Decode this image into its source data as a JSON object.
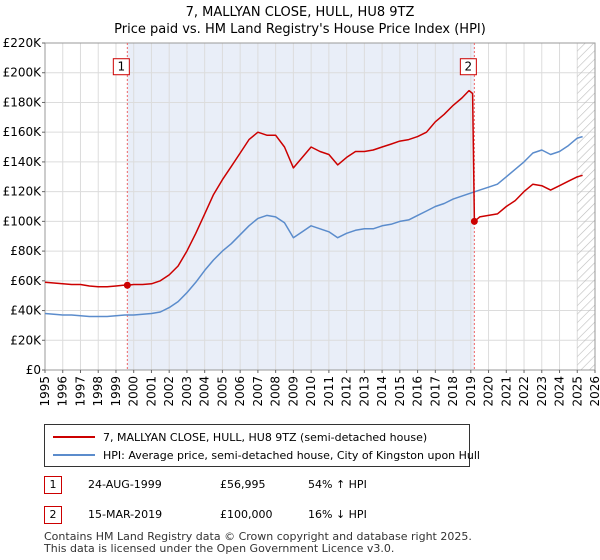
{
  "title_line1": "7, MALLYAN CLOSE, HULL, HU8 9TZ",
  "title_line2": "Price paid vs. HM Land Registry's House Price Index (HPI)",
  "colors": {
    "property": "#cc0000",
    "hpi": "#5b8ccc",
    "marker_line": "#ee6666",
    "hatch": "#bbbbbb",
    "shade": "#e9eef8"
  },
  "chart_data": {
    "type": "line",
    "title": "Price paid vs. HM Land Registry's House Price Index (HPI)",
    "xlabel": "",
    "ylabel": "",
    "xlim": [
      1995,
      2026
    ],
    "ylim": [
      0,
      220000
    ],
    "y_ticks": [
      {
        "value": 0,
        "label": "£0"
      },
      {
        "value": 20000,
        "label": "£20K"
      },
      {
        "value": 40000,
        "label": "£40K"
      },
      {
        "value": 60000,
        "label": "£60K"
      },
      {
        "value": 80000,
        "label": "£80K"
      },
      {
        "value": 100000,
        "label": "£100K"
      },
      {
        "value": 120000,
        "label": "£120K"
      },
      {
        "value": 140000,
        "label": "£140K"
      },
      {
        "value": 160000,
        "label": "£160K"
      },
      {
        "value": 180000,
        "label": "£180K"
      },
      {
        "value": 200000,
        "label": "£200K"
      },
      {
        "value": 220000,
        "label": "£220K"
      }
    ],
    "x_ticks": [
      "1995",
      "1996",
      "1997",
      "1998",
      "1999",
      "2000",
      "2001",
      "2002",
      "2003",
      "2004",
      "2005",
      "2006",
      "2007",
      "2008",
      "2009",
      "2010",
      "2011",
      "2012",
      "2013",
      "2014",
      "2015",
      "2016",
      "2017",
      "2018",
      "2019",
      "2020",
      "2021",
      "2022",
      "2023",
      "2024",
      "2025",
      "2026"
    ],
    "shaded_period": [
      1999.65,
      2019.2
    ],
    "hatched_from": 2025.0,
    "series": [
      {
        "name": "7, MALLYAN CLOSE, HULL, HU8 9TZ (semi-detached house)",
        "points": [
          [
            1995.0,
            59000
          ],
          [
            1995.5,
            58500
          ],
          [
            1996.0,
            58000
          ],
          [
            1996.5,
            57500
          ],
          [
            1997.0,
            57500
          ],
          [
            1997.5,
            56500
          ],
          [
            1998.0,
            56000
          ],
          [
            1998.5,
            56000
          ],
          [
            1999.0,
            56500
          ],
          [
            1999.4,
            57000
          ],
          [
            1999.64,
            56995
          ],
          [
            2000.0,
            57500
          ],
          [
            2000.5,
            57500
          ],
          [
            2001.0,
            58000
          ],
          [
            2001.5,
            60000
          ],
          [
            2002.0,
            64000
          ],
          [
            2002.5,
            70000
          ],
          [
            2003.0,
            80000
          ],
          [
            2003.5,
            92000
          ],
          [
            2004.0,
            105000
          ],
          [
            2004.5,
            118000
          ],
          [
            2005.0,
            128000
          ],
          [
            2005.5,
            137000
          ],
          [
            2006.0,
            146000
          ],
          [
            2006.5,
            155000
          ],
          [
            2007.0,
            160000
          ],
          [
            2007.5,
            158000
          ],
          [
            2008.0,
            158000
          ],
          [
            2008.5,
            150000
          ],
          [
            2009.0,
            136000
          ],
          [
            2009.5,
            143000
          ],
          [
            2010.0,
            150000
          ],
          [
            2010.5,
            147000
          ],
          [
            2011.0,
            145000
          ],
          [
            2011.5,
            138000
          ],
          [
            2012.0,
            143000
          ],
          [
            2012.5,
            147000
          ],
          [
            2013.0,
            147000
          ],
          [
            2013.5,
            148000
          ],
          [
            2014.0,
            150000
          ],
          [
            2014.5,
            152000
          ],
          [
            2015.0,
            154000
          ],
          [
            2015.5,
            155000
          ],
          [
            2016.0,
            157000
          ],
          [
            2016.5,
            160000
          ],
          [
            2017.0,
            167000
          ],
          [
            2017.5,
            172000
          ],
          [
            2018.0,
            178000
          ],
          [
            2018.5,
            183000
          ],
          [
            2018.9,
            188000
          ],
          [
            2019.1,
            186000
          ],
          [
            2019.2,
            100000
          ],
          [
            2019.5,
            103000
          ],
          [
            2020.0,
            104000
          ],
          [
            2020.5,
            105000
          ],
          [
            2021.0,
            110000
          ],
          [
            2021.5,
            114000
          ],
          [
            2022.0,
            120000
          ],
          [
            2022.5,
            125000
          ],
          [
            2023.0,
            124000
          ],
          [
            2023.5,
            121000
          ],
          [
            2024.0,
            124000
          ],
          [
            2024.5,
            127000
          ],
          [
            2025.0,
            130000
          ],
          [
            2025.3,
            131000
          ]
        ]
      },
      {
        "name": "HPI: Average price, semi-detached house, City of Kingston upon Hull",
        "points": [
          [
            1995.0,
            38000
          ],
          [
            1995.5,
            37500
          ],
          [
            1996.0,
            37000
          ],
          [
            1996.5,
            37000
          ],
          [
            1997.0,
            36500
          ],
          [
            1997.5,
            36000
          ],
          [
            1998.0,
            36000
          ],
          [
            1998.5,
            36000
          ],
          [
            1999.0,
            36500
          ],
          [
            1999.5,
            37000
          ],
          [
            2000.0,
            37000
          ],
          [
            2000.5,
            37500
          ],
          [
            2001.0,
            38000
          ],
          [
            2001.5,
            39000
          ],
          [
            2002.0,
            42000
          ],
          [
            2002.5,
            46000
          ],
          [
            2003.0,
            52000
          ],
          [
            2003.5,
            59000
          ],
          [
            2004.0,
            67000
          ],
          [
            2004.5,
            74000
          ],
          [
            2005.0,
            80000
          ],
          [
            2005.5,
            85000
          ],
          [
            2006.0,
            91000
          ],
          [
            2006.5,
            97000
          ],
          [
            2007.0,
            102000
          ],
          [
            2007.5,
            104000
          ],
          [
            2008.0,
            103000
          ],
          [
            2008.5,
            99000
          ],
          [
            2009.0,
            89000
          ],
          [
            2009.5,
            93000
          ],
          [
            2010.0,
            97000
          ],
          [
            2010.5,
            95000
          ],
          [
            2011.0,
            93000
          ],
          [
            2011.5,
            89000
          ],
          [
            2012.0,
            92000
          ],
          [
            2012.5,
            94000
          ],
          [
            2013.0,
            95000
          ],
          [
            2013.5,
            95000
          ],
          [
            2014.0,
            97000
          ],
          [
            2014.5,
            98000
          ],
          [
            2015.0,
            100000
          ],
          [
            2015.5,
            101000
          ],
          [
            2016.0,
            104000
          ],
          [
            2016.5,
            107000
          ],
          [
            2017.0,
            110000
          ],
          [
            2017.5,
            112000
          ],
          [
            2018.0,
            115000
          ],
          [
            2018.5,
            117000
          ],
          [
            2019.0,
            119000
          ],
          [
            2019.5,
            121000
          ],
          [
            2020.0,
            123000
          ],
          [
            2020.5,
            125000
          ],
          [
            2021.0,
            130000
          ],
          [
            2021.5,
            135000
          ],
          [
            2022.0,
            140000
          ],
          [
            2022.5,
            146000
          ],
          [
            2023.0,
            148000
          ],
          [
            2023.5,
            145000
          ],
          [
            2024.0,
            147000
          ],
          [
            2024.5,
            151000
          ],
          [
            2025.0,
            156000
          ],
          [
            2025.3,
            157000
          ]
        ]
      }
    ],
    "markers": [
      {
        "label": "1",
        "x": 1999.64,
        "y": 56995,
        "label_y": 200000
      },
      {
        "label": "2",
        "x": 2019.2,
        "y": 100000,
        "label_y": 200000
      }
    ]
  },
  "legend": {
    "property_label": "7, MALLYAN CLOSE, HULL, HU8 9TZ (semi-detached house)",
    "hpi_label": "HPI: Average price, semi-detached house, City of Kingston upon Hull"
  },
  "transactions": [
    {
      "num": "1",
      "date": "24-AUG-1999",
      "price": "£56,995",
      "hpi": "54% ↑ HPI"
    },
    {
      "num": "2",
      "date": "15-MAR-2019",
      "price": "£100,000",
      "hpi": "16% ↓ HPI"
    }
  ],
  "footer": {
    "line1": "Contains HM Land Registry data © Crown copyright and database right 2025.",
    "line2": "This data is licensed under the Open Government Licence v3.0."
  }
}
